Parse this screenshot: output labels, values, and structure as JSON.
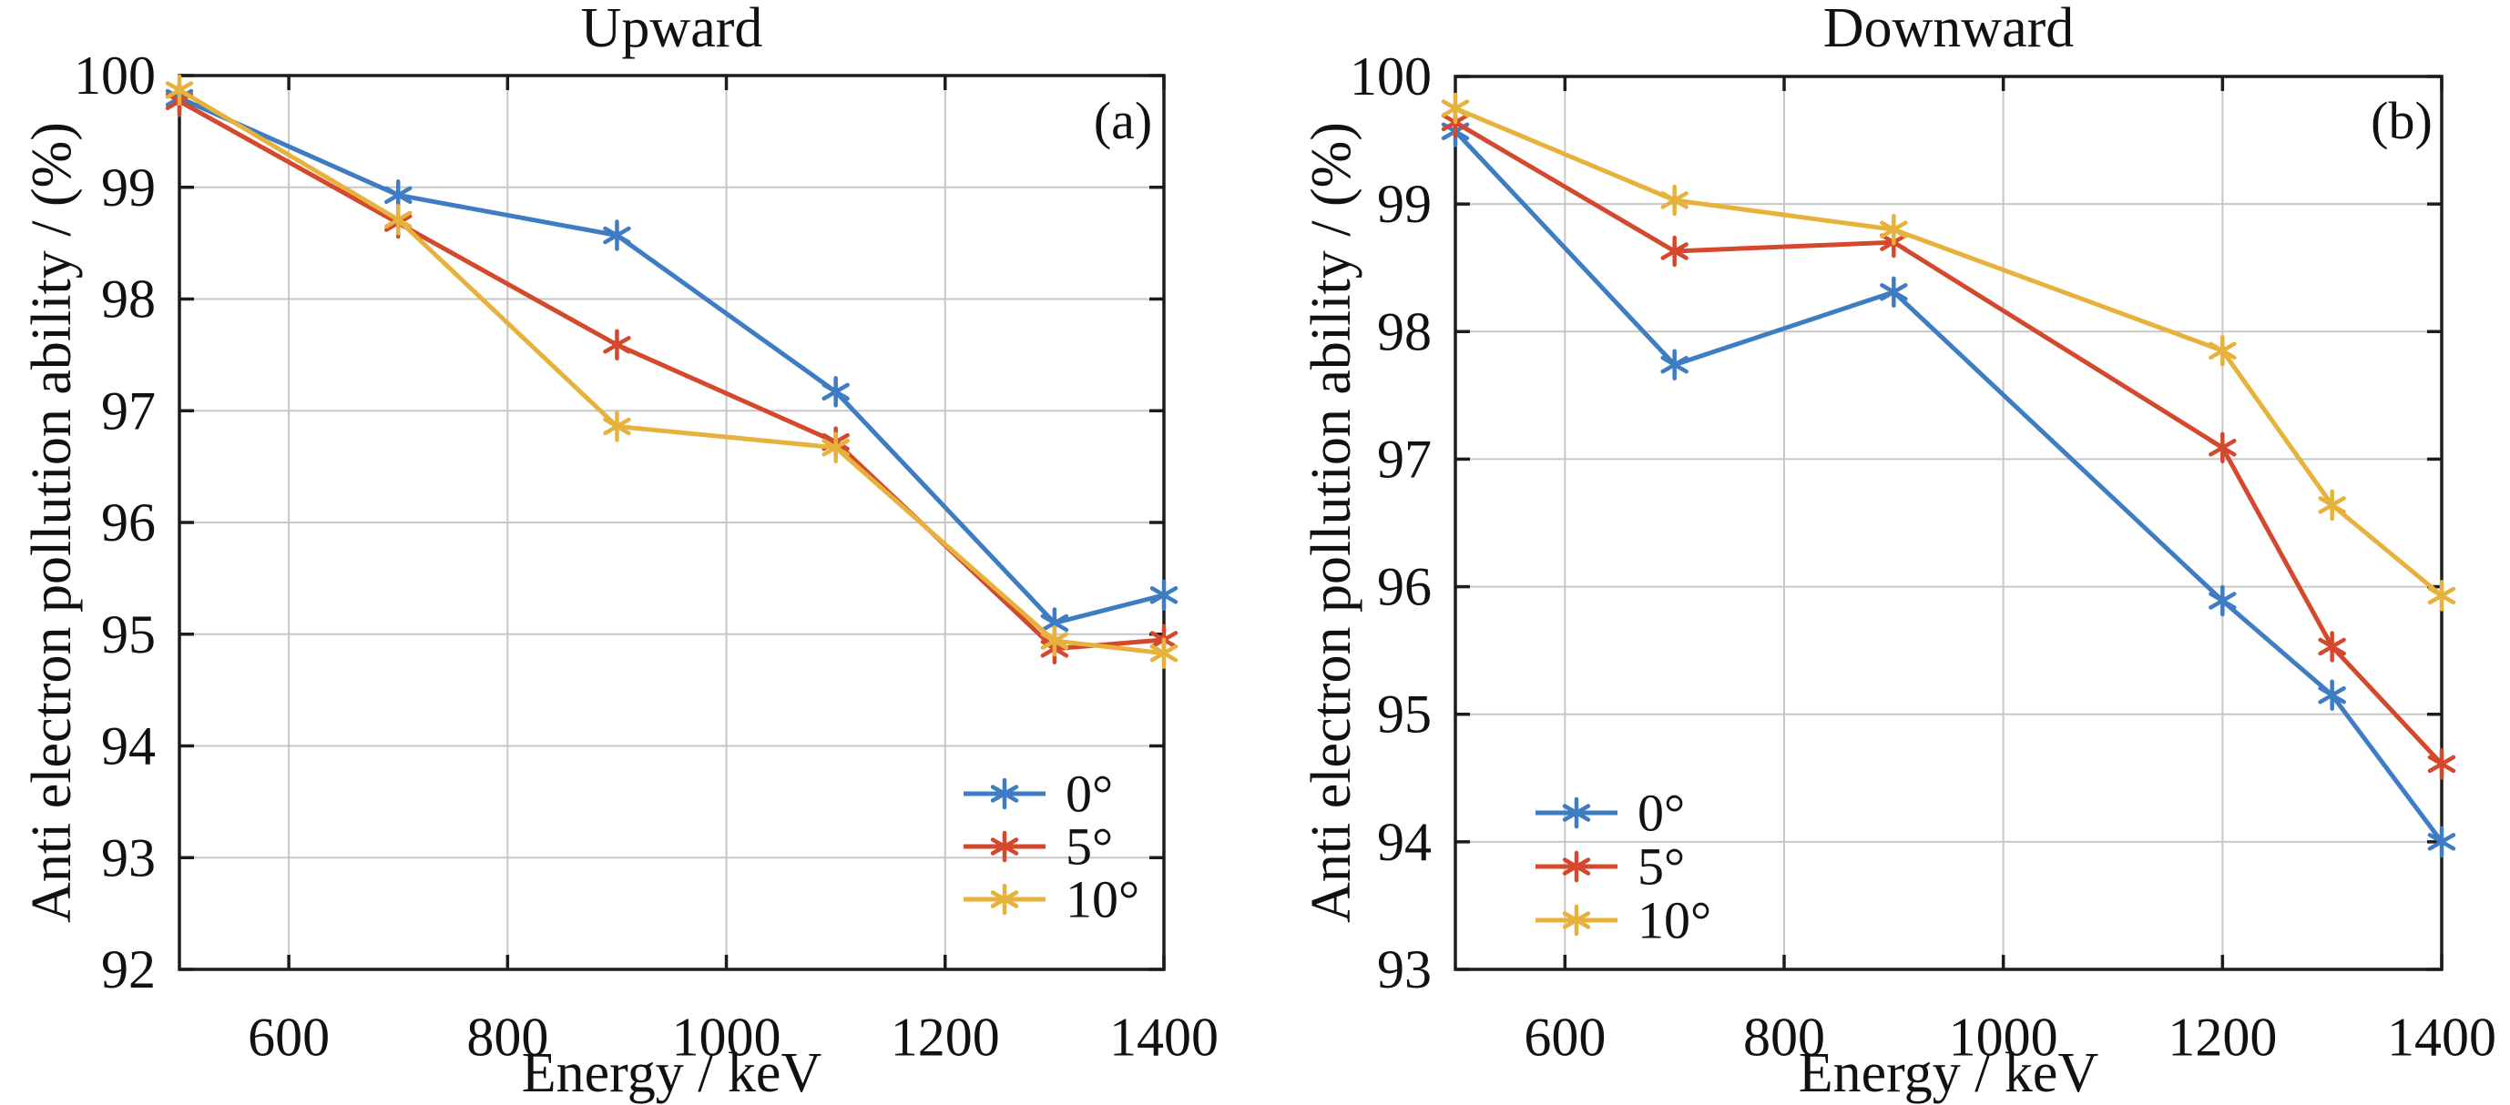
{
  "figure": {
    "background": "#ffffff",
    "text_color": "#111111",
    "grid_color": "#c7c7c7",
    "axis_color": "#1c1c1c"
  },
  "chart_data": [
    {
      "type": "line",
      "title": "Upward",
      "panel_label": "(a)",
      "xlabel": "Energy / keV",
      "ylabel": "Anti electron pollution ability / (%)",
      "xlim": [
        500,
        1400
      ],
      "ylim": [
        92,
        100
      ],
      "xticks": [
        600,
        800,
        1000,
        1200,
        1400
      ],
      "yticks": [
        92,
        93,
        94,
        95,
        96,
        97,
        98,
        99,
        100
      ],
      "grid": true,
      "x": [
        500,
        700,
        900,
        1100,
        1300,
        1400
      ],
      "series": [
        {
          "name": "0°",
          "color": "#3E7CC4",
          "marker": "asterisk",
          "values": [
            99.8,
            98.93,
            98.57,
            97.17,
            95.1,
            95.35
          ]
        },
        {
          "name": "5°",
          "color": "#D4492E",
          "marker": "asterisk",
          "values": [
            99.77,
            98.68,
            97.59,
            96.72,
            94.87,
            94.95
          ]
        },
        {
          "name": "10°",
          "color": "#E7B23C",
          "marker": "asterisk",
          "values": [
            99.87,
            98.71,
            96.86,
            96.67,
            94.94,
            94.83
          ]
        }
      ],
      "legend": {
        "entries": [
          "0°",
          "5°",
          "10°"
        ],
        "position": "inside-bottom-right"
      }
    },
    {
      "type": "line",
      "title": "Downward",
      "panel_label": "(b)",
      "xlabel": "Energy / keV",
      "ylabel": "Anti electron pollution ability / (%)",
      "xlim": [
        500,
        1400
      ],
      "ylim": [
        93,
        100
      ],
      "xticks": [
        600,
        800,
        1000,
        1200,
        1400
      ],
      "yticks": [
        93,
        94,
        95,
        96,
        97,
        98,
        99,
        100
      ],
      "grid": true,
      "x": [
        500,
        700,
        900,
        1200,
        1300,
        1400
      ],
      "series": [
        {
          "name": "0°",
          "color": "#3E7CC4",
          "marker": "asterisk",
          "values": [
            99.57,
            97.74,
            98.31,
            95.89,
            95.15,
            94.0
          ]
        },
        {
          "name": "5°",
          "color": "#D4492E",
          "marker": "asterisk",
          "values": [
            99.64,
            98.63,
            98.7,
            97.09,
            95.53,
            94.61
          ]
        },
        {
          "name": "10°",
          "color": "#E7B23C",
          "marker": "asterisk",
          "values": [
            99.75,
            99.03,
            98.8,
            97.85,
            96.64,
            95.93
          ]
        }
      ],
      "legend": {
        "entries": [
          "0°",
          "5°",
          "10°"
        ],
        "position": "inside-bottom-left"
      }
    }
  ]
}
